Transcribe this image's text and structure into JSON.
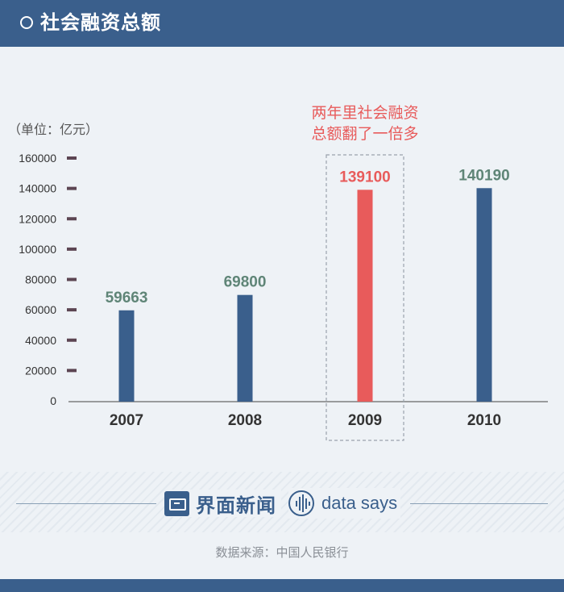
{
  "header": {
    "title": "社会融资总额"
  },
  "chart_data": {
    "type": "bar",
    "title": "社会融资总额",
    "unit_label": "（单位：亿元）",
    "categories": [
      "2007",
      "2008",
      "2009",
      "2010"
    ],
    "values": [
      59663,
      69800,
      139100,
      140190
    ],
    "value_labels": [
      "59663",
      "69800",
      "139100",
      "140190"
    ],
    "highlight_index": 2,
    "yticks": [
      0,
      20000,
      40000,
      60000,
      80000,
      100000,
      120000,
      140000,
      160000
    ],
    "ylim": [
      0,
      160000
    ],
    "annotation": [
      "两年里社会融资",
      "总额翻了一倍多"
    ],
    "grid": false,
    "colors": {
      "bar": "#3a5f8c",
      "highlight": "#e85b5b",
      "value_label": "#5f8577",
      "tick_mark": "#5c4552",
      "axis_text": "#333333"
    }
  },
  "footer": {
    "brand_cn": "界面新闻",
    "brand_en": "data says",
    "source": "数据来源：中国人民银行"
  }
}
